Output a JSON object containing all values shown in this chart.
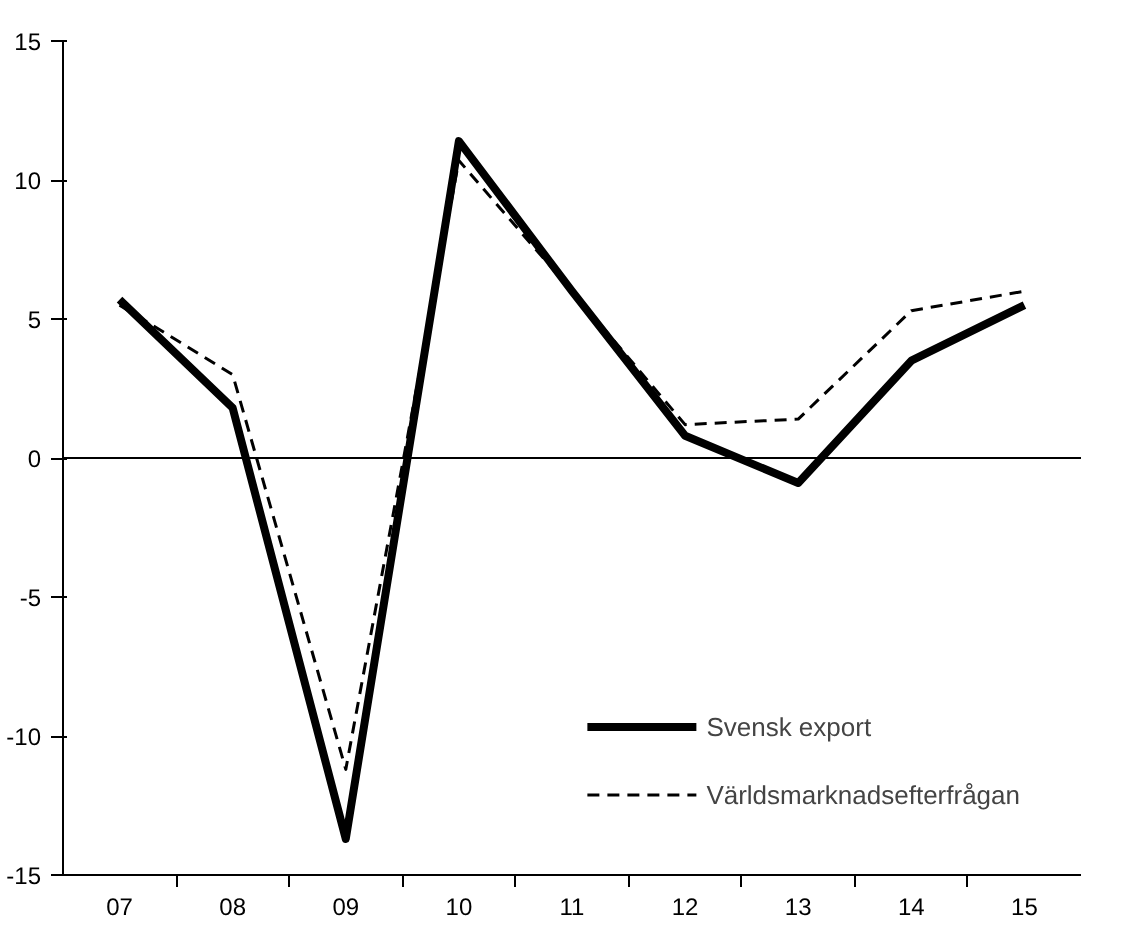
{
  "chart_data": {
    "type": "line",
    "categories": [
      "07",
      "08",
      "09",
      "10",
      "11",
      "12",
      "13",
      "14",
      "15"
    ],
    "series": [
      {
        "name": "Svensk export",
        "color": "#000000",
        "line_style": "solid",
        "values": [
          5.7,
          1.8,
          -13.7,
          11.4,
          6.0,
          0.8,
          -0.9,
          3.5,
          5.5
        ]
      },
      {
        "name": "Världsmarknadsefterfrågan",
        "color": "#000000",
        "line_style": "dashed",
        "values": [
          5.5,
          3.0,
          -11.2,
          10.7,
          6.0,
          1.2,
          1.4,
          5.3,
          6.0
        ]
      }
    ],
    "ylim": [
      -15,
      15
    ],
    "yticks": [
      -15,
      -10,
      -5,
      0,
      5,
      10,
      15
    ],
    "ref_lines": [
      {
        "axis": "y",
        "value": 0,
        "label": null,
        "color": "#000000"
      }
    ],
    "grid": false,
    "legend": "bottom right",
    "marker": "none"
  }
}
